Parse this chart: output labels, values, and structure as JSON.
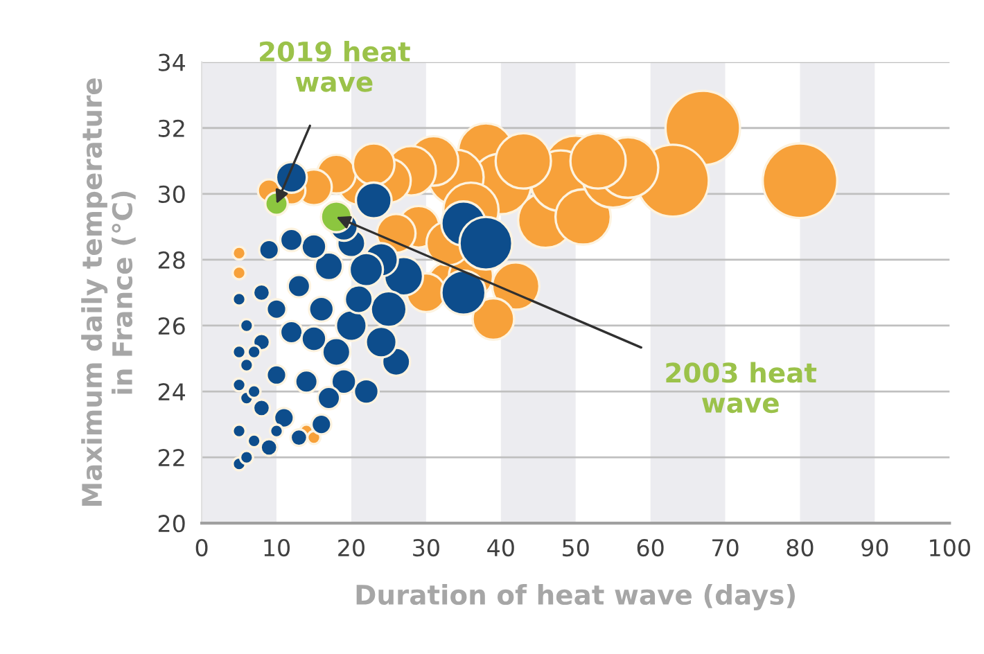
{
  "chart_data": {
    "type": "bubble",
    "xlabel": "Duration of heat wave (days)",
    "ylabel": "Maximum daily temperature\nin France (°C)",
    "xlim": [
      0,
      100
    ],
    "xticks": [
      0,
      10,
      20,
      30,
      40,
      50,
      60,
      70,
      80,
      90,
      100
    ],
    "ylim": [
      20,
      34
    ],
    "yticks": [
      20,
      22,
      24,
      26,
      28,
      30,
      32,
      34
    ],
    "grid": "y",
    "bands": [
      {
        "axis": "x",
        "from": 0,
        "to": 10,
        "color": "#ececf0"
      },
      {
        "axis": "x",
        "from": 20,
        "to": 30,
        "color": "#ececf0"
      },
      {
        "axis": "x",
        "from": 40,
        "to": 50,
        "color": "#ececf0"
      },
      {
        "axis": "x",
        "from": 60,
        "to": 70,
        "color": "#ececf0"
      },
      {
        "axis": "x",
        "from": 80,
        "to": 90,
        "color": "#ececf0"
      }
    ],
    "series": [
      {
        "color": "#f7a13a",
        "x": [
          80,
          67,
          63,
          50,
          38,
          40,
          34,
          31,
          28,
          25,
          21,
          18,
          15,
          12,
          9,
          36,
          40,
          42,
          39,
          33,
          30,
          36,
          29,
          33,
          46,
          48,
          51,
          55,
          57,
          53,
          43,
          5,
          5,
          14,
          15,
          26,
          23
        ],
        "values": [
          30.4,
          32.0,
          30.4,
          30.8,
          31.3,
          30.3,
          30.5,
          31.0,
          30.7,
          30.4,
          30.3,
          30.6,
          30.2,
          30.1,
          30.1,
          29.5,
          null,
          27.2,
          26.2,
          27.3,
          27.0,
          27.5,
          29.0,
          28.5,
          29.2,
          30.4,
          29.3,
          30.5,
          30.8,
          31.0,
          31.0,
          28.2,
          27.6,
          22.8,
          22.6,
          28.8,
          30.9
        ],
        "sizes": [
          1,
          1,
          0.93,
          0.73,
          0.55,
          0.66,
          0.55,
          0.44,
          0.44,
          0.35,
          0.31,
          0.27,
          0.23,
          0.14,
          0.09,
          0.55,
          null,
          0.4,
          0.31,
          0.31,
          0.27,
          0.35,
          0.31,
          0.35,
          0.55,
          0.66,
          0.55,
          0.66,
          0.66,
          0.55,
          0.55,
          0.03,
          0.03,
          0.03,
          0.03,
          0.27,
          0.31
        ]
      },
      {
        "color": "#0d4d8c",
        "x": [
          35,
          38,
          35,
          26,
          22,
          23,
          12,
          27,
          24,
          25,
          22,
          20,
          20,
          17,
          15,
          18,
          16,
          13,
          12,
          14,
          10,
          10,
          9,
          8,
          8,
          8,
          7,
          6,
          6,
          6,
          5,
          5,
          5,
          5,
          5,
          11,
          13,
          9,
          15,
          19,
          21,
          24,
          17,
          12,
          19,
          7,
          7,
          6,
          10,
          16
        ],
        "values": [
          29.1,
          28.5,
          27.0,
          24.9,
          24.0,
          29.8,
          30.5,
          27.5,
          28.0,
          26.5,
          27.7,
          28.5,
          26.0,
          27.8,
          28.4,
          25.2,
          26.5,
          27.2,
          25.8,
          24.3,
          26.5,
          24.5,
          28.3,
          27.0,
          25.5,
          23.5,
          22.5,
          26.0,
          24.8,
          23.8,
          22.8,
          21.8,
          25.2,
          26.8,
          24.2,
          23.2,
          22.6,
          22.3,
          25.6,
          24.3,
          26.8,
          25.5,
          23.8,
          28.6,
          29.0,
          24.0,
          25.2,
          22.0,
          22.8,
          23.0
        ],
        "sizes": [
          0.35,
          0.5,
          0.35,
          0.14,
          0.11,
          0.23,
          0.17,
          0.27,
          0.2,
          0.23,
          0.2,
          0.14,
          0.17,
          0.14,
          0.11,
          0.14,
          0.11,
          0.09,
          0.09,
          0.09,
          0.07,
          0.07,
          0.07,
          0.05,
          0.05,
          0.05,
          0.03,
          0.03,
          0.03,
          0.03,
          0.03,
          0.03,
          0.03,
          0.03,
          0.03,
          0.07,
          0.05,
          0.05,
          0.11,
          0.11,
          0.14,
          0.17,
          0.09,
          0.09,
          0.14,
          0.03,
          0.03,
          0.03,
          0.03,
          0.07
        ]
      },
      {
        "color": "#8cc63f",
        "x": [
          10,
          18
        ],
        "values": [
          29.7,
          29.3
        ],
        "sizes": [
          0.09,
          0.17
        ]
      }
    ],
    "annotations": [
      {
        "text": "2019 heat\nwave",
        "x": 10,
        "y": 29.7
      },
      {
        "text": "2003 heat\nwave",
        "x": 18,
        "y": 29.3
      }
    ]
  }
}
